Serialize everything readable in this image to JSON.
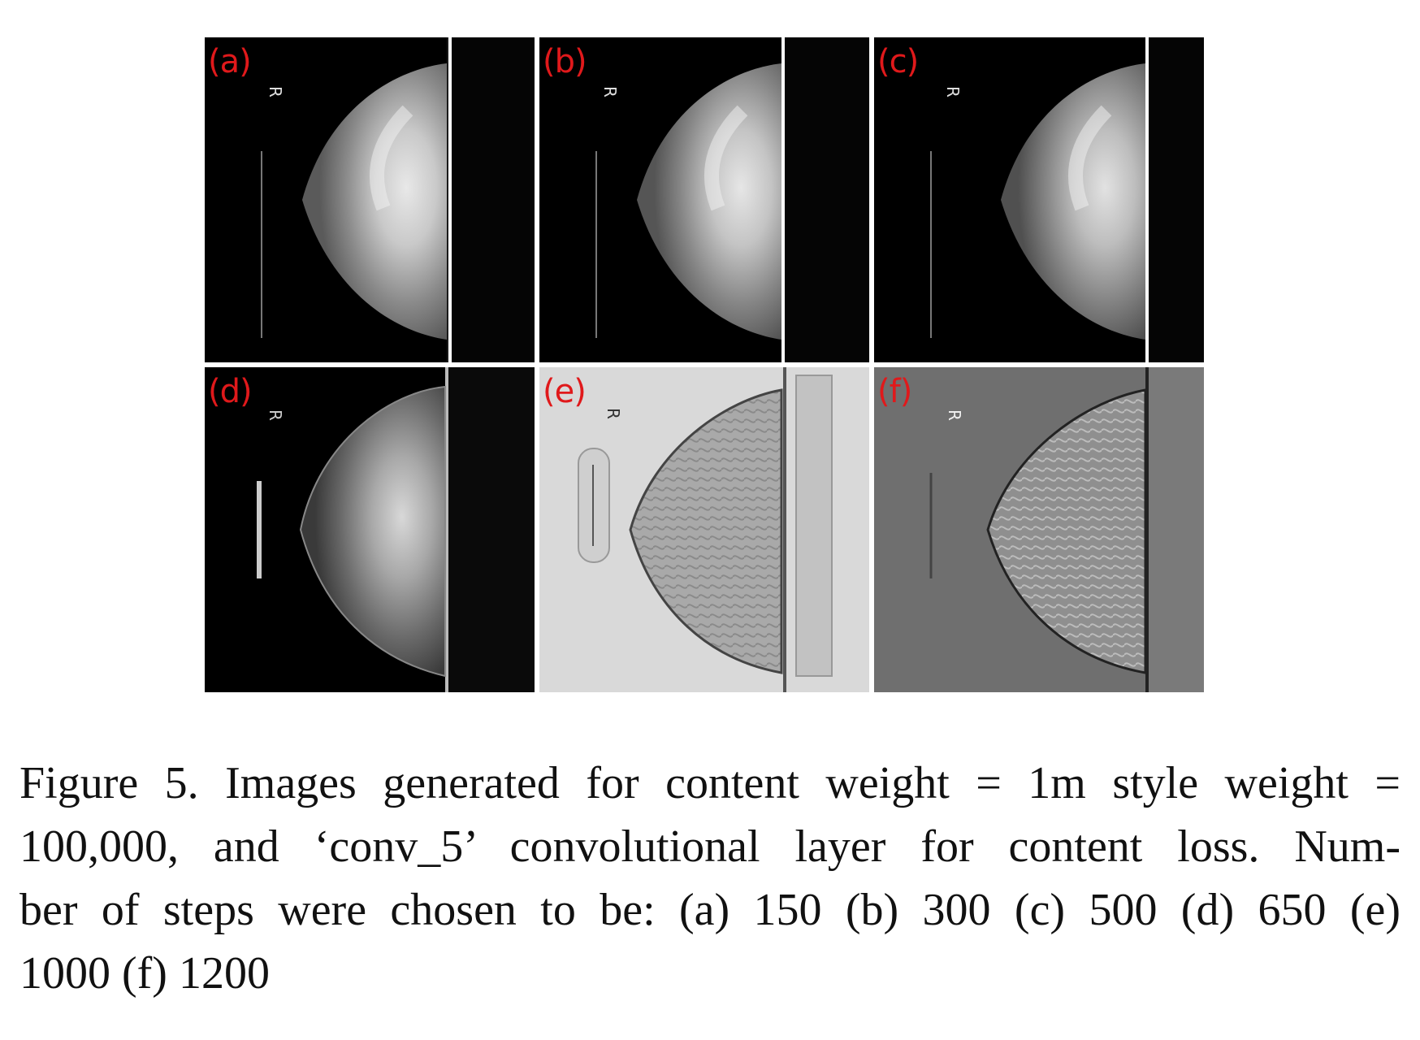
{
  "panels": [
    {
      "label": "(a)",
      "style": "dark",
      "steps": 150
    },
    {
      "label": "(b)",
      "style": "dark",
      "steps": 300
    },
    {
      "label": "(c)",
      "style": "dark",
      "steps": 500
    },
    {
      "label": "(d)",
      "style": "dark-noisy",
      "steps": 650
    },
    {
      "label": "(e)",
      "style": "light-texture",
      "steps": 1000
    },
    {
      "label": "(f)",
      "style": "gray-texture",
      "steps": 1200
    }
  ],
  "marker_text": "R",
  "label_color": "#e0191b",
  "caption": {
    "line1": "Figure 5. Images generated for content weight = 1m style weight =",
    "line2": "100,000, and ‘conv_5’ convolutional layer for content loss. Num-",
    "line3": "ber of steps were chosen to be: (a) 150 (b) 300 (c) 500 (d) 650 (e)",
    "line4": "1000 (f) 1200"
  }
}
